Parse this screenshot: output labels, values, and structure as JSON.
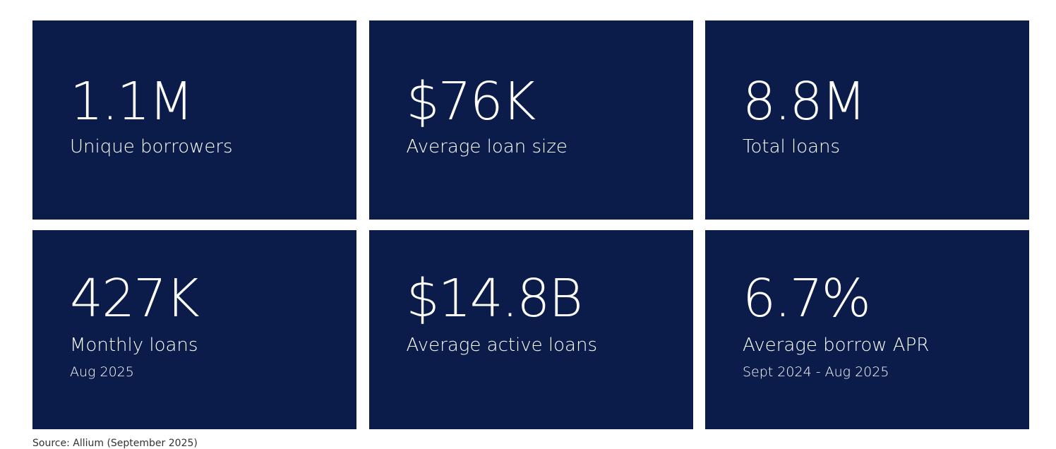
{
  "cards": [
    {
      "value": "1.1M",
      "label": "Unique borrowers"
    },
    {
      "value": "$76K",
      "label": "Average loan size"
    },
    {
      "value": "8.8M",
      "label": "Total loans"
    },
    {
      "value": "427K",
      "label": "Monthly loans",
      "note": "Aug 2025"
    },
    {
      "value": "$14.8B",
      "label": "Average active loans"
    },
    {
      "value": "6.7%",
      "label": "Average borrow APR",
      "note": "Sept 2024 - Aug 2025"
    }
  ],
  "footer": {
    "source": "Source: Allium (September 2025)"
  }
}
